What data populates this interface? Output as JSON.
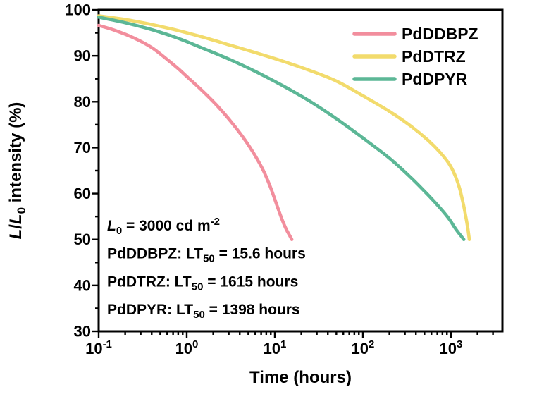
{
  "figure": {
    "background": "#ffffff",
    "frame_color": "#000000",
    "text_color": "#000000"
  },
  "chart_data": {
    "type": "line",
    "title": "",
    "xlabel": "Time (hours)",
    "ylabel_segments": [
      {
        "t": "L",
        "s": "i"
      },
      {
        "t": "/",
        "s": "n"
      },
      {
        "t": "L",
        "s": "i"
      },
      {
        "t": "0",
        "s": "sub"
      },
      {
        "t": " intensity (%)",
        "s": "n"
      }
    ],
    "x_scale": "log",
    "xlim": [
      0.1,
      3840
    ],
    "ylim": [
      30,
      100
    ],
    "x_major_tick_exponents": [
      -1,
      0,
      1,
      2,
      3
    ],
    "x_tick_base": "10",
    "y_major_ticks": [
      30,
      40,
      50,
      60,
      70,
      80,
      90,
      100
    ],
    "y_minor_step": 5,
    "grid": false,
    "legend": {
      "position": "top-right",
      "items": [
        {
          "label": "PdDDBPZ",
          "color": "#F28E9D"
        },
        {
          "label": "PdDTRZ",
          "color": "#F2DB6C"
        },
        {
          "label": "PdDPYR",
          "color": "#5CB796"
        }
      ]
    },
    "series": [
      {
        "name": "PdDDBPZ",
        "color": "#F28E9D",
        "lt50_hours": 15.6,
        "points": [
          [
            0.1,
            96.6
          ],
          [
            0.15,
            95.6
          ],
          [
            0.25,
            93.9
          ],
          [
            0.4,
            91.8
          ],
          [
            0.6,
            89.2
          ],
          [
            0.8,
            87.2
          ],
          [
            1.0,
            85.5
          ],
          [
            1.5,
            82.4
          ],
          [
            2.2,
            79.2
          ],
          [
            3.2,
            75.6
          ],
          [
            4.5,
            71.9
          ],
          [
            6.0,
            68.2
          ],
          [
            7.5,
            64.8
          ],
          [
            9.0,
            61.2
          ],
          [
            10.5,
            57.6
          ],
          [
            12.0,
            54.5
          ],
          [
            13.5,
            52.2
          ],
          [
            14.8,
            50.8
          ],
          [
            15.6,
            50.0
          ]
        ]
      },
      {
        "name": "PdDTRZ",
        "color": "#F2DB6C",
        "lt50_hours": 1615,
        "points": [
          [
            0.1,
            98.7
          ],
          [
            0.2,
            97.9
          ],
          [
            0.4,
            96.8
          ],
          [
            0.8,
            95.5
          ],
          [
            1.5,
            94.1
          ],
          [
            3.0,
            92.4
          ],
          [
            6.0,
            90.7
          ],
          [
            12.0,
            88.9
          ],
          [
            25.0,
            86.8
          ],
          [
            50.0,
            84.5
          ],
          [
            100.0,
            81.3
          ],
          [
            200.0,
            77.9
          ],
          [
            350.0,
            74.7
          ],
          [
            550.0,
            71.6
          ],
          [
            750.0,
            69.0
          ],
          [
            950.0,
            66.5
          ],
          [
            1100.0,
            64.2
          ],
          [
            1250.0,
            61.2
          ],
          [
            1380.0,
            57.8
          ],
          [
            1480.0,
            54.8
          ],
          [
            1560.0,
            52.2
          ],
          [
            1615.0,
            50.0
          ]
        ]
      },
      {
        "name": "PdDPYR",
        "color": "#5CB796",
        "lt50_hours": 1398,
        "points": [
          [
            0.1,
            98.4
          ],
          [
            0.2,
            97.2
          ],
          [
            0.4,
            95.7
          ],
          [
            0.8,
            93.8
          ],
          [
            1.5,
            91.7
          ],
          [
            3.0,
            89.3
          ],
          [
            6.0,
            86.6
          ],
          [
            12.0,
            83.6
          ],
          [
            25.0,
            80.1
          ],
          [
            50.0,
            76.3
          ],
          [
            100.0,
            72.1
          ],
          [
            200.0,
            67.7
          ],
          [
            350.0,
            63.5
          ],
          [
            550.0,
            59.7
          ],
          [
            750.0,
            56.9
          ],
          [
            950.0,
            54.5
          ],
          [
            1150.0,
            52.1
          ],
          [
            1300.0,
            50.8
          ],
          [
            1398.0,
            50.0
          ]
        ]
      }
    ],
    "annotations": [
      {
        "name": "luminance-condition",
        "segments": [
          {
            "t": "L",
            "s": "i"
          },
          {
            "t": "0",
            "s": "sub"
          },
          {
            "t": " = 3000 cd m",
            "s": "n"
          },
          {
            "t": "-2",
            "s": "sup"
          }
        ]
      },
      {
        "name": "lt50-pdddbpz",
        "segments": [
          {
            "t": "PdDDBPZ: LT",
            "s": "n"
          },
          {
            "t": "50",
            "s": "sub"
          },
          {
            "t": " = 15.6 hours",
            "s": "n"
          }
        ]
      },
      {
        "name": "lt50-pddtrz",
        "segments": [
          {
            "t": "PdDTRZ: LT",
            "s": "n"
          },
          {
            "t": "50",
            "s": "sub"
          },
          {
            "t": " = 1615 hours",
            "s": "n"
          }
        ]
      },
      {
        "name": "lt50-pddpyr",
        "segments": [
          {
            "t": "PdDPYR: LT",
            "s": "n"
          },
          {
            "t": "50",
            "s": "sub"
          },
          {
            "t": " = 1398 hours",
            "s": "n"
          }
        ]
      }
    ]
  }
}
